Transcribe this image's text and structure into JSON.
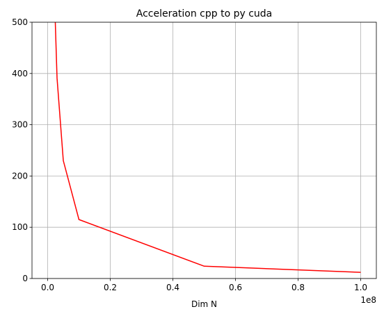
{
  "chart_data": {
    "type": "line",
    "title": "Acceleration cpp to py cuda",
    "xlabel": "Dim N",
    "x_offset_label": "1e8",
    "x": [
      1000000,
      3000000,
      5000000,
      10000000,
      50000000,
      100000000
    ],
    "series": [
      {
        "color": "#ff0000",
        "values": [
          780,
          391,
          230,
          115,
          24,
          12
        ]
      }
    ],
    "xlim": [
      -5000000,
      105000000
    ],
    "xticks": [
      {
        "value": 0,
        "label": "0.0"
      },
      {
        "value": 20000000,
        "label": "0.2"
      },
      {
        "value": 40000000,
        "label": "0.4"
      },
      {
        "value": 60000000,
        "label": "0.6"
      },
      {
        "value": 80000000,
        "label": "0.8"
      },
      {
        "value": 100000000,
        "label": "1.0"
      }
    ],
    "ylim": [
      0,
      500
    ],
    "yticks": [
      0,
      100,
      200,
      300,
      400,
      500
    ],
    "grid": true
  }
}
